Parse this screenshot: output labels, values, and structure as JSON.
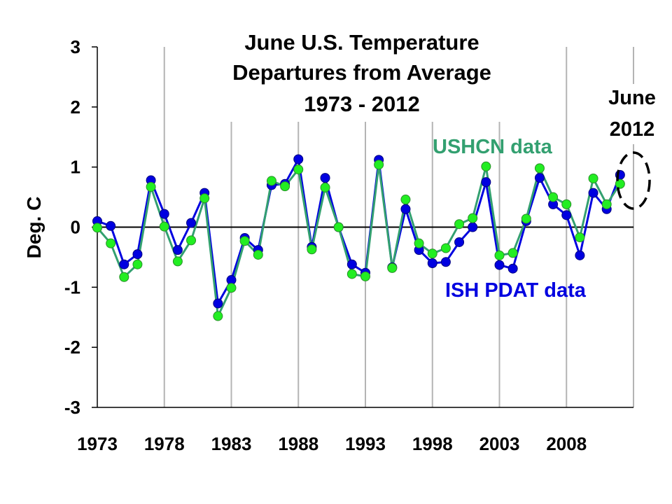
{
  "chart_data": {
    "type": "line",
    "title_lines": [
      "June U.S. Temperature",
      "Departures from Average",
      "1973 - 2012"
    ],
    "xlabel": "",
    "ylabel": "Deg. C",
    "xlim": [
      1973,
      2012
    ],
    "ylim": [
      -3,
      3
    ],
    "x_ticks": [
      "1973",
      "1978",
      "1983",
      "1988",
      "1993",
      "1998",
      "2003",
      "2008"
    ],
    "y_ticks": [
      "3",
      "2",
      "1",
      "0",
      "-1",
      "-2",
      "-3"
    ],
    "grid": "vertical",
    "x": [
      1973,
      1974,
      1975,
      1976,
      1977,
      1978,
      1979,
      1980,
      1981,
      1982,
      1983,
      1984,
      1985,
      1986,
      1987,
      1988,
      1989,
      1990,
      1991,
      1992,
      1993,
      1994,
      1995,
      1996,
      1997,
      1998,
      1999,
      2000,
      2001,
      2002,
      2003,
      2004,
      2005,
      2006,
      2007,
      2008,
      2009,
      2010,
      2011,
      2012
    ],
    "series": [
      {
        "name": "ISH PDAT data",
        "color": "#0000e0",
        "values": [
          0.1,
          0.02,
          -0.62,
          -0.45,
          0.78,
          0.22,
          -0.38,
          0.07,
          0.57,
          -1.27,
          -0.88,
          -0.18,
          -0.38,
          0.7,
          0.72,
          1.13,
          -0.33,
          0.82,
          0.0,
          -0.62,
          -0.76,
          1.12,
          -0.67,
          0.3,
          -0.38,
          -0.6,
          -0.58,
          -0.25,
          0.0,
          0.75,
          -0.63,
          -0.69,
          0.1,
          0.82,
          0.38,
          0.2,
          -0.47,
          0.57,
          0.3,
          0.87
        ]
      },
      {
        "name": "USHCN data",
        "color": "#33a070",
        "marker_color": "#22ee22",
        "values": [
          -0.01,
          -0.27,
          -0.83,
          -0.62,
          0.67,
          0.01,
          -0.57,
          -0.22,
          0.48,
          -1.48,
          -1.01,
          -0.23,
          -0.46,
          0.77,
          0.68,
          0.96,
          -0.37,
          0.66,
          0.0,
          -0.78,
          -0.82,
          1.04,
          -0.68,
          0.46,
          -0.27,
          -0.44,
          -0.35,
          0.05,
          0.15,
          1.01,
          -0.47,
          -0.43,
          0.14,
          0.98,
          0.5,
          0.38,
          -0.17,
          0.81,
          0.38,
          0.72
        ]
      }
    ],
    "annotations": {
      "ushcn_label": "USHCN data",
      "ish_label": "ISH PDAT data",
      "callout_line1": "June",
      "callout_line2": "2012"
    }
  }
}
